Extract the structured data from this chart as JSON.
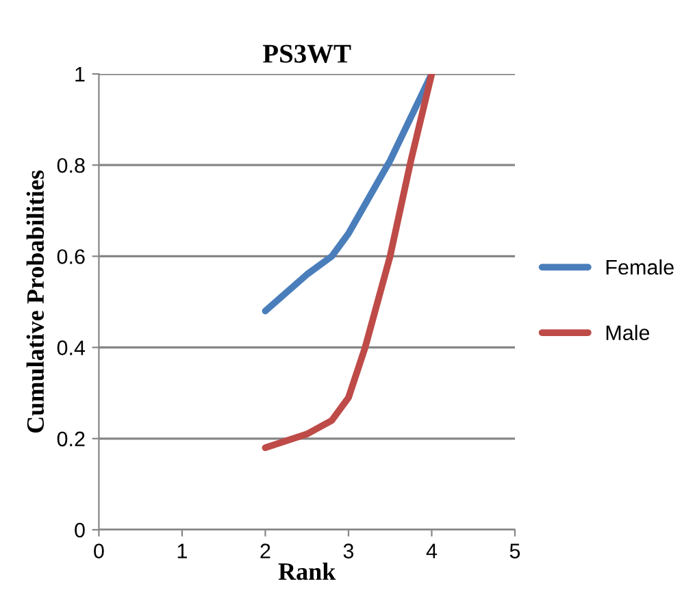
{
  "chart_data": {
    "type": "line",
    "title": "PS3WT",
    "xlabel": "Rank",
    "ylabel": "Cumulative Probabilities",
    "xlim": [
      0,
      5
    ],
    "xticks": [
      0,
      1,
      2,
      3,
      4,
      5
    ],
    "ylim": [
      0,
      1
    ],
    "yticks": [
      0,
      0.2,
      0.4,
      0.6,
      0.8,
      1
    ],
    "grid": "y",
    "legend": "right",
    "marker": "none",
    "line_style": "solid",
    "series": [
      {
        "name": "Female",
        "color": "#4a7ebb",
        "x": [
          2,
          2.5,
          2.8,
          3,
          3.5,
          4
        ],
        "values": [
          0.48,
          0.56,
          0.6,
          0.65,
          0.81,
          1
        ]
      },
      {
        "name": "Male",
        "color": "#be4b48",
        "x": [
          2,
          2.5,
          2.8,
          3,
          3.2,
          3.5,
          3.75,
          4
        ],
        "values": [
          0.18,
          0.21,
          0.24,
          0.29,
          0.4,
          0.6,
          0.81,
          1
        ]
      }
    ]
  }
}
